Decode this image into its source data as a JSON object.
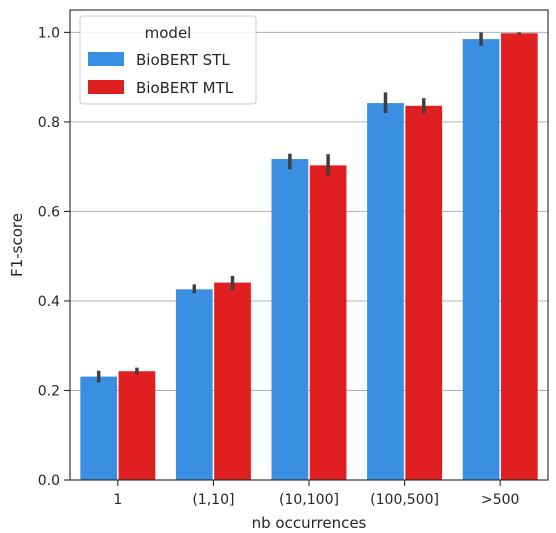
{
  "chart_data": {
    "type": "bar",
    "title": "",
    "xlabel": "nb occurrences",
    "ylabel": "F1-score",
    "categories": [
      "1",
      "(1,10]",
      "(10,100]",
      "(100,500]",
      ">500"
    ],
    "ylim": [
      0.0,
      1.05
    ],
    "yticks": [
      0.0,
      0.2,
      0.4,
      0.6,
      0.8,
      1.0
    ],
    "ytick_labels": [
      "0.0",
      "0.2",
      "0.4",
      "0.6",
      "0.8",
      "1.0"
    ],
    "grid": "horizontal",
    "legend": {
      "title": "model",
      "placement": "top-left"
    },
    "series": [
      {
        "name": "BioBERT STL",
        "color": "#3b8fe3",
        "values": [
          0.231,
          0.426,
          0.717,
          0.842,
          0.985
        ],
        "err_low": [
          0.218,
          0.417,
          0.694,
          0.82,
          0.97
        ],
        "err_high": [
          0.244,
          0.437,
          0.729,
          0.866,
          1.0
        ]
      },
      {
        "name": "BioBERT MTL",
        "color": "#e02020",
        "values": [
          0.243,
          0.441,
          0.703,
          0.836,
          0.998
        ],
        "err_low": [
          0.236,
          0.424,
          0.68,
          0.819,
          0.996
        ],
        "err_high": [
          0.251,
          0.456,
          0.728,
          0.853,
          1.0
        ]
      }
    ]
  }
}
